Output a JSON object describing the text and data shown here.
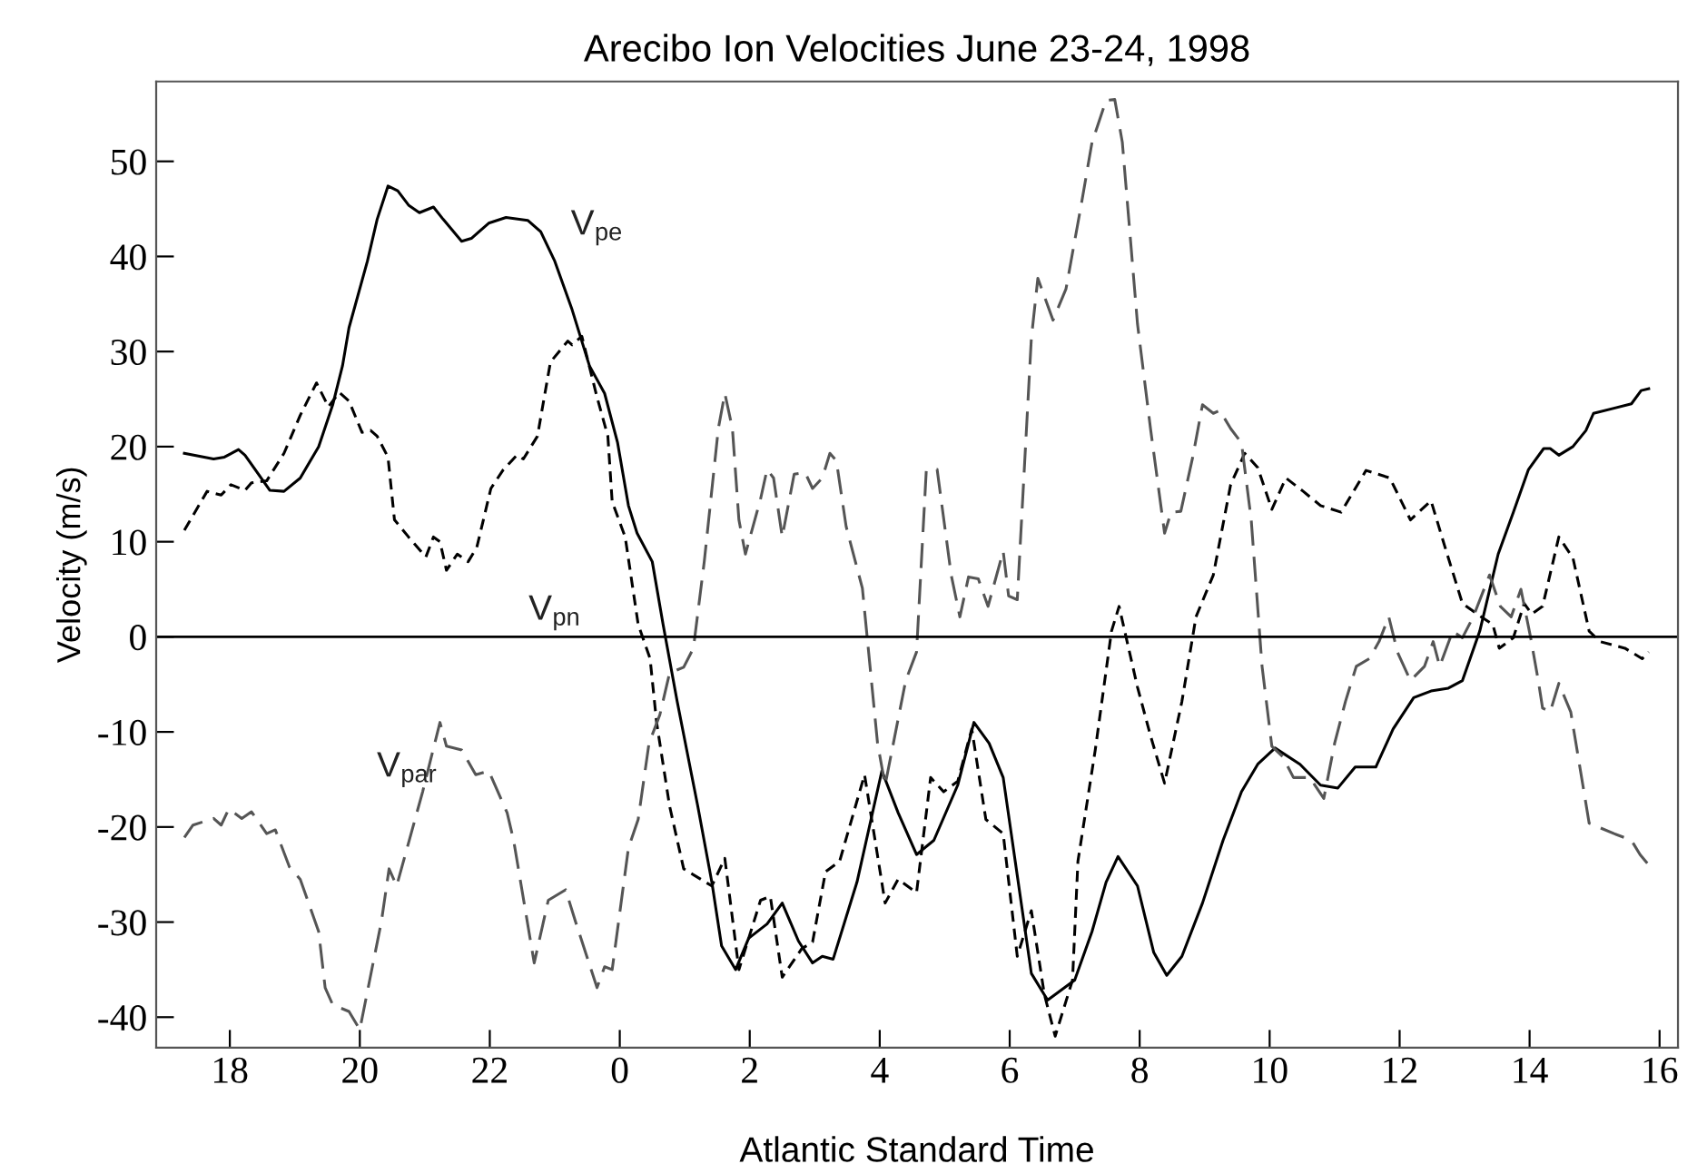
{
  "chart_data": {
    "type": "line",
    "title": "Arecibo Ion Velocities June 23-24, 1998",
    "xlabel": "Atlantic Standard Time",
    "ylabel": "Velocity (m/s)",
    "xlim": [
      "1998-06-23T16:52",
      "1998-06-24T16:17"
    ],
    "ylim": [
      -43.2,
      58.4
    ],
    "xticks": [
      {
        "value": "1998-06-23T18:00",
        "label": "18"
      },
      {
        "value": "1998-06-23T20:00",
        "label": "20"
      },
      {
        "value": "1998-06-23T22:00",
        "label": "22"
      },
      {
        "value": "1998-06-24T00:00",
        "label": "0"
      },
      {
        "value": "1998-06-24T02:00",
        "label": "2"
      },
      {
        "value": "1998-06-24T04:00",
        "label": "4"
      },
      {
        "value": "1998-06-24T06:00",
        "label": "6"
      },
      {
        "value": "1998-06-24T08:00",
        "label": "8"
      },
      {
        "value": "1998-06-24T10:00",
        "label": "10"
      },
      {
        "value": "1998-06-24T12:00",
        "label": "12"
      },
      {
        "value": "1998-06-24T14:00",
        "label": "14"
      },
      {
        "value": "1998-06-24T16:00",
        "label": "16"
      }
    ],
    "yticks": [
      -40,
      -30,
      -20,
      -10,
      0,
      10,
      20,
      30,
      40,
      50
    ],
    "grid": false,
    "legend": false,
    "marker": "none",
    "ref_lines": [
      {
        "axis": "y",
        "value": 0,
        "color": "#000000",
        "line_style": "solid"
      }
    ],
    "series": [
      {
        "name": "V$_{pe}$",
        "color": "#000000",
        "line_style": "solid",
        "x": [
          "1998-06-23T17:18",
          "1998-06-23T17:45",
          "1998-06-23T17:55",
          "1998-06-23T18:08",
          "1998-06-23T18:14",
          "1998-06-23T18:37",
          "1998-06-23T18:50",
          "1998-06-23T19:05",
          "1998-06-23T19:22",
          "1998-06-23T19:35",
          "1998-06-23T19:44",
          "1998-06-23T19:50",
          "1998-06-23T20:07",
          "1998-06-23T20:16",
          "1998-06-23T20:26",
          "1998-06-23T20:35",
          "1998-06-23T20:45",
          "1998-06-23T20:55",
          "1998-06-23T21:08",
          "1998-06-23T21:17",
          "1998-06-23T21:34",
          "1998-06-23T21:43",
          "1998-06-23T21:59",
          "1998-06-23T22:15",
          "1998-06-23T22:35",
          "1998-06-23T22:47",
          "1998-06-23T23:00",
          "1998-06-23T23:16",
          "1998-06-23T23:32",
          "1998-06-23T23:46",
          "1998-06-23T23:58",
          "1998-06-24T00:08",
          "1998-06-24T00:16",
          "1998-06-24T00:30",
          "1998-06-24T00:40",
          "1998-06-24T00:53",
          "1998-06-24T01:12",
          "1998-06-24T01:25",
          "1998-06-24T01:34",
          "1998-06-24T01:47",
          "1998-06-24T01:59",
          "1998-06-24T02:16",
          "1998-06-24T02:30",
          "1998-06-24T02:45",
          "1998-06-24T02:58",
          "1998-06-24T03:07",
          "1998-06-24T03:17",
          "1998-06-24T03:39",
          "1998-06-24T04:02",
          "1998-06-24T04:17",
          "1998-06-24T04:34",
          "1998-06-24T04:50",
          "1998-06-24T05:12",
          "1998-06-24T05:27",
          "1998-06-24T05:41",
          "1998-06-24T05:54",
          "1998-06-24T06:07",
          "1998-06-24T06:20",
          "1998-06-24T06:35",
          "1998-06-24T07:00",
          "1998-06-24T07:16",
          "1998-06-24T07:29",
          "1998-06-24T07:40",
          "1998-06-24T07:58",
          "1998-06-24T08:13",
          "1998-06-24T08:25",
          "1998-06-24T08:39",
          "1998-06-24T08:58",
          "1998-06-24T09:17",
          "1998-06-24T09:34",
          "1998-06-24T09:49",
          "1998-06-24T10:05",
          "1998-06-24T10:28",
          "1998-06-24T10:47",
          "1998-06-24T11:03",
          "1998-06-24T11:19",
          "1998-06-24T11:38",
          "1998-06-24T11:54",
          "1998-06-24T12:13",
          "1998-06-24T12:29",
          "1998-06-24T12:45",
          "1998-06-24T12:58",
          "1998-06-24T13:14",
          "1998-06-24T13:31",
          "1998-06-24T13:45",
          "1998-06-24T13:59",
          "1998-06-24T14:13",
          "1998-06-24T14:19",
          "1998-06-24T14:27",
          "1998-06-24T14:40",
          "1998-06-24T14:52",
          "1998-06-24T14:59",
          "1998-06-24T15:34",
          "1998-06-24T15:43",
          "1998-06-24T15:50"
        ],
        "values": [
          19.3,
          18.7,
          18.9,
          19.7,
          19.1,
          15.4,
          15.3,
          16.7,
          20.0,
          24.4,
          28.5,
          32.5,
          39.5,
          43.9,
          47.4,
          46.9,
          45.4,
          44.6,
          45.2,
          43.9,
          41.6,
          41.9,
          43.5,
          44.1,
          43.8,
          42.6,
          39.5,
          34.4,
          28.5,
          25.6,
          20.4,
          13.8,
          10.9,
          7.9,
          1.3,
          -6.8,
          -17.8,
          -25.8,
          -32.5,
          -35.0,
          -31.7,
          -30.2,
          -28.0,
          -32.0,
          -34.3,
          -33.6,
          -33.9,
          -25.8,
          -14.1,
          -18.5,
          -22.9,
          -21.4,
          -15.6,
          -9.0,
          -11.2,
          -14.8,
          -25.1,
          -35.4,
          -38.2,
          -36.1,
          -31.0,
          -25.8,
          -23.1,
          -26.2,
          -33.2,
          -35.6,
          -33.6,
          -28.0,
          -21.4,
          -16.3,
          -13.4,
          -11.7,
          -13.4,
          -15.6,
          -15.9,
          -13.7,
          -13.7,
          -9.7,
          -6.4,
          -5.7,
          -5.4,
          -4.6,
          0.6,
          8.7,
          13.1,
          17.6,
          19.8,
          19.8,
          19.1,
          20.0,
          21.7,
          23.5,
          24.5,
          25.9,
          26.1
        ]
      },
      {
        "name": "V$_{pn}$",
        "color": "#000000",
        "line_style": "dashed",
        "x": [
          "1998-06-23T17:18",
          "1998-06-23T17:39",
          "1998-06-23T17:52",
          "1998-06-23T18:01",
          "1998-06-23T18:14",
          "1998-06-23T18:20",
          "1998-06-23T18:34",
          "1998-06-23T18:50",
          "1998-06-23T19:05",
          "1998-06-23T19:20",
          "1998-06-23T19:31",
          "1998-06-23T19:41",
          "1998-06-23T19:50",
          "1998-06-23T20:02",
          "1998-06-23T20:10",
          "1998-06-23T20:16",
          "1998-06-23T20:26",
          "1998-06-23T20:32",
          "1998-06-23T20:45",
          "1998-06-23T21:01",
          "1998-06-23T21:08",
          "1998-06-23T21:14",
          "1998-06-23T21:20",
          "1998-06-23T21:30",
          "1998-06-23T21:40",
          "1998-06-23T21:48",
          "1998-06-23T22:01",
          "1998-06-23T22:12",
          "1998-06-23T22:25",
          "1998-06-23T22:31",
          "1998-06-23T22:44",
          "1998-06-23T22:56",
          "1998-06-23T23:12",
          "1998-06-23T23:16",
          "1998-06-23T23:25",
          "1998-06-23T23:39",
          "1998-06-23T23:49",
          "1998-06-23T23:53",
          "1998-06-24T00:05",
          "1998-06-24T00:17",
          "1998-06-24T00:28",
          "1998-06-24T00:34",
          "1998-06-24T00:46",
          "1998-06-24T00:59",
          "1998-06-24T01:25",
          "1998-06-24T01:37",
          "1998-06-24T01:50",
          "1998-06-24T02:10",
          "1998-06-24T02:19",
          "1998-06-24T02:30",
          "1998-06-24T02:48",
          "1998-06-24T02:58",
          "1998-06-24T03:10",
          "1998-06-24T03:23",
          "1998-06-24T03:46",
          "1998-06-24T04:05",
          "1998-06-24T04:17",
          "1998-06-24T04:34",
          "1998-06-24T04:47",
          "1998-06-24T04:59",
          "1998-06-24T05:12",
          "1998-06-24T05:25",
          "1998-06-24T05:38",
          "1998-06-24T05:54",
          "1998-06-24T06:07",
          "1998-06-24T06:20",
          "1998-06-24T06:32",
          "1998-06-24T06:42",
          "1998-06-24T06:58",
          "1998-06-24T07:03",
          "1998-06-24T07:19",
          "1998-06-24T07:34",
          "1998-06-24T07:41",
          "1998-06-24T07:58",
          "1998-06-24T08:10",
          "1998-06-24T08:23",
          "1998-06-24T08:39",
          "1998-06-24T08:52",
          "1998-06-24T09:08",
          "1998-06-24T09:24",
          "1998-06-24T09:37",
          "1998-06-24T09:49",
          "1998-06-24T10:02",
          "1998-06-24T10:15",
          "1998-06-24T10:31",
          "1998-06-24T10:47",
          "1998-06-24T11:06",
          "1998-06-24T11:29",
          "1998-06-24T11:51",
          "1998-06-24T12:10",
          "1998-06-24T12:29",
          "1998-06-24T12:42",
          "1998-06-24T12:58",
          "1998-06-24T13:14",
          "1998-06-24T13:26",
          "1998-06-24T13:32",
          "1998-06-24T13:45",
          "1998-06-24T13:55",
          "1998-06-24T14:02",
          "1998-06-24T14:12",
          "1998-06-24T14:27",
          "1998-06-24T14:40",
          "1998-06-24T14:55",
          "1998-06-24T15:05",
          "1998-06-24T15:28",
          "1998-06-24T15:44",
          "1998-06-24T15:50"
        ],
        "values": [
          11.2,
          15.3,
          14.9,
          16.0,
          15.4,
          16.2,
          16.4,
          19.3,
          23.3,
          26.7,
          24.2,
          25.7,
          24.8,
          21.5,
          21.7,
          21.1,
          18.9,
          12.3,
          10.5,
          8.4,
          10.5,
          10.0,
          7.0,
          8.7,
          7.9,
          9.4,
          15.6,
          17.5,
          19.1,
          18.7,
          21.1,
          28.9,
          31.1,
          30.7,
          31.6,
          25.2,
          21.1,
          14.2,
          10.5,
          1.3,
          -2.3,
          -9.0,
          -17.8,
          -24.4,
          -26.2,
          -23.3,
          -35.0,
          -27.7,
          -27.3,
          -35.8,
          -32.8,
          -32.1,
          -24.7,
          -23.6,
          -14.5,
          -28.0,
          -25.5,
          -26.9,
          -14.8,
          -16.3,
          -15.2,
          -9.7,
          -19.2,
          -20.7,
          -33.6,
          -28.8,
          -37.6,
          -42.0,
          -36.1,
          -23.6,
          -11.9,
          0.6,
          3.2,
          -5.3,
          -10.4,
          -15.4,
          -6.8,
          2.1,
          6.5,
          16.0,
          19.3,
          17.8,
          13.4,
          16.7,
          15.3,
          13.8,
          13.1,
          17.5,
          16.7,
          12.3,
          14.3,
          9.4,
          3.5,
          2.2,
          1.3,
          -1.2,
          -0.1,
          3.5,
          2.4,
          3.2,
          10.5,
          8.3,
          0.6,
          -0.5,
          -1.2,
          -2.3,
          -1.6
        ]
      },
      {
        "name": "V$_{par}$",
        "color": "#555555",
        "line_style": "dashed",
        "x": [
          "1998-06-23T17:18",
          "1998-06-23T17:26",
          "1998-06-23T17:45",
          "1998-06-23T17:52",
          "1998-06-23T17:59",
          "1998-06-23T18:11",
          "1998-06-23T18:20",
          "1998-06-23T18:34",
          "1998-06-23T18:42",
          "1998-06-23T18:55",
          "1998-06-23T19:05",
          "1998-06-23T19:22",
          "1998-06-23T19:28",
          "1998-06-23T19:35",
          "1998-06-23T19:50",
          "1998-06-23T20:00",
          "1998-06-23T20:20",
          "1998-06-23T20:27",
          "1998-06-23T20:34",
          "1998-06-23T20:58",
          "1998-06-23T21:14",
          "1998-06-23T21:20",
          "1998-06-23T21:34",
          "1998-06-23T21:47",
          "1998-06-23T21:59",
          "1998-06-23T22:16",
          "1998-06-23T22:22",
          "1998-06-23T22:41",
          "1998-06-23T22:54",
          "1998-06-23T23:10",
          "1998-06-23T23:19",
          "1998-06-23T23:39",
          "1998-06-23T23:46",
          "1998-06-23T23:53",
          "1998-06-24T00:08",
          "1998-06-24T00:17",
          "1998-06-24T00:27",
          "1998-06-24T00:37",
          "1998-06-24T00:46",
          "1998-06-24T00:59",
          "1998-06-24T01:08",
          "1998-06-24T01:18",
          "1998-06-24T01:31",
          "1998-06-24T01:37",
          "1998-06-24T01:44",
          "1998-06-24T01:50",
          "1998-06-24T01:56",
          "1998-06-24T02:10",
          "1998-06-24T02:16",
          "1998-06-24T02:22",
          "1998-06-24T02:30",
          "1998-06-24T02:41",
          "1998-06-24T02:51",
          "1998-06-24T02:58",
          "1998-06-24T03:07",
          "1998-06-24T03:14",
          "1998-06-24T03:20",
          "1998-06-24T03:29",
          "1998-06-24T03:44",
          "1998-06-24T03:58",
          "1998-06-24T04:05",
          "1998-06-24T04:24",
          "1998-06-24T04:34",
          "1998-06-24T04:43",
          "1998-06-24T04:53",
          "1998-06-24T05:06",
          "1998-06-24T05:14",
          "1998-06-24T05:22",
          "1998-06-24T05:31",
          "1998-06-24T05:40",
          "1998-06-24T05:54",
          "1998-06-24T05:59",
          "1998-06-24T06:07",
          "1998-06-24T06:20",
          "1998-06-24T06:26",
          "1998-06-24T06:40",
          "1998-06-24T06:52",
          "1998-06-24T07:06",
          "1998-06-24T07:16",
          "1998-06-24T07:29",
          "1998-06-24T07:37",
          "1998-06-24T07:44",
          "1998-06-24T07:58",
          "1998-06-24T08:10",
          "1998-06-24T08:23",
          "1998-06-24T08:29",
          "1998-06-24T08:38",
          "1998-06-24T08:49",
          "1998-06-24T08:58",
          "1998-06-24T09:08",
          "1998-06-24T09:14",
          "1998-06-24T09:24",
          "1998-06-24T09:34",
          "1998-06-24T09:43",
          "1998-06-24T09:53",
          "1998-06-24T10:02",
          "1998-06-24T10:12",
          "1998-06-24T10:22",
          "1998-06-24T10:37",
          "1998-06-24T10:50",
          "1998-06-24T11:00",
          "1998-06-24T11:10",
          "1998-06-24T11:20",
          "1998-06-24T11:32",
          "1998-06-24T11:41",
          "1998-06-24T11:50",
          "1998-06-24T11:58",
          "1998-06-24T12:10",
          "1998-06-24T12:23",
          "1998-06-24T12:31",
          "1998-06-24T12:37",
          "1998-06-24T12:49",
          "1998-06-24T12:58",
          "1998-06-24T13:08",
          "1998-06-24T13:23",
          "1998-06-24T13:33",
          "1998-06-24T13:43",
          "1998-06-24T13:52",
          "1998-06-24T14:01",
          "1998-06-24T14:08",
          "1998-06-24T14:12",
          "1998-06-24T14:19",
          "1998-06-24T14:27",
          "1998-06-24T14:38",
          "1998-06-24T14:55",
          "1998-06-24T15:18",
          "1998-06-24T15:34",
          "1998-06-24T15:42",
          "1998-06-24T15:50"
        ],
        "values": [
          -21.1,
          -19.8,
          -19.1,
          -19.8,
          -18.1,
          -19.1,
          -18.4,
          -20.7,
          -20.3,
          -24.2,
          -25.5,
          -31.0,
          -36.9,
          -38.7,
          -39.4,
          -41.3,
          -29.9,
          -24.4,
          -26.2,
          -16.3,
          -9.0,
          -11.5,
          -11.9,
          -14.5,
          -14.1,
          -18.5,
          -21.4,
          -34.3,
          -27.7,
          -26.6,
          -29.9,
          -36.9,
          -34.7,
          -35.0,
          -22.2,
          -19.2,
          -11.2,
          -8.2,
          -3.8,
          -3.2,
          -1.2,
          7.9,
          21.9,
          25.6,
          21.9,
          12.3,
          8.7,
          14.5,
          17.6,
          16.7,
          10.5,
          17.1,
          17.3,
          15.6,
          16.7,
          19.3,
          18.5,
          11.6,
          5.1,
          -11.2,
          -15.6,
          -4.6,
          -1.6,
          17.5,
          17.6,
          6.5,
          2.1,
          6.3,
          6.1,
          3.2,
          9.0,
          4.3,
          3.9,
          31.4,
          37.7,
          33.3,
          36.6,
          45.4,
          52.0,
          56.4,
          56.5,
          52.0,
          32.9,
          21.9,
          10.9,
          13.1,
          13.2,
          18.9,
          24.4,
          23.5,
          23.8,
          21.9,
          20.4,
          12.3,
          -3.1,
          -11.5,
          -12.6,
          -14.8,
          -14.8,
          -17.0,
          -11.2,
          -6.8,
          -3.1,
          -2.3,
          -0.5,
          2.1,
          -1.6,
          -4.6,
          -3.1,
          -0.5,
          -3.1,
          0.6,
          -0.1,
          2.1,
          6.5,
          3.2,
          2.1,
          5.0,
          -0.1,
          -4.6,
          -7.5,
          -7.9,
          -4.9,
          -7.9,
          -19.6,
          -20.7,
          -21.4,
          -22.9,
          -24.0
        ]
      }
    ]
  }
}
